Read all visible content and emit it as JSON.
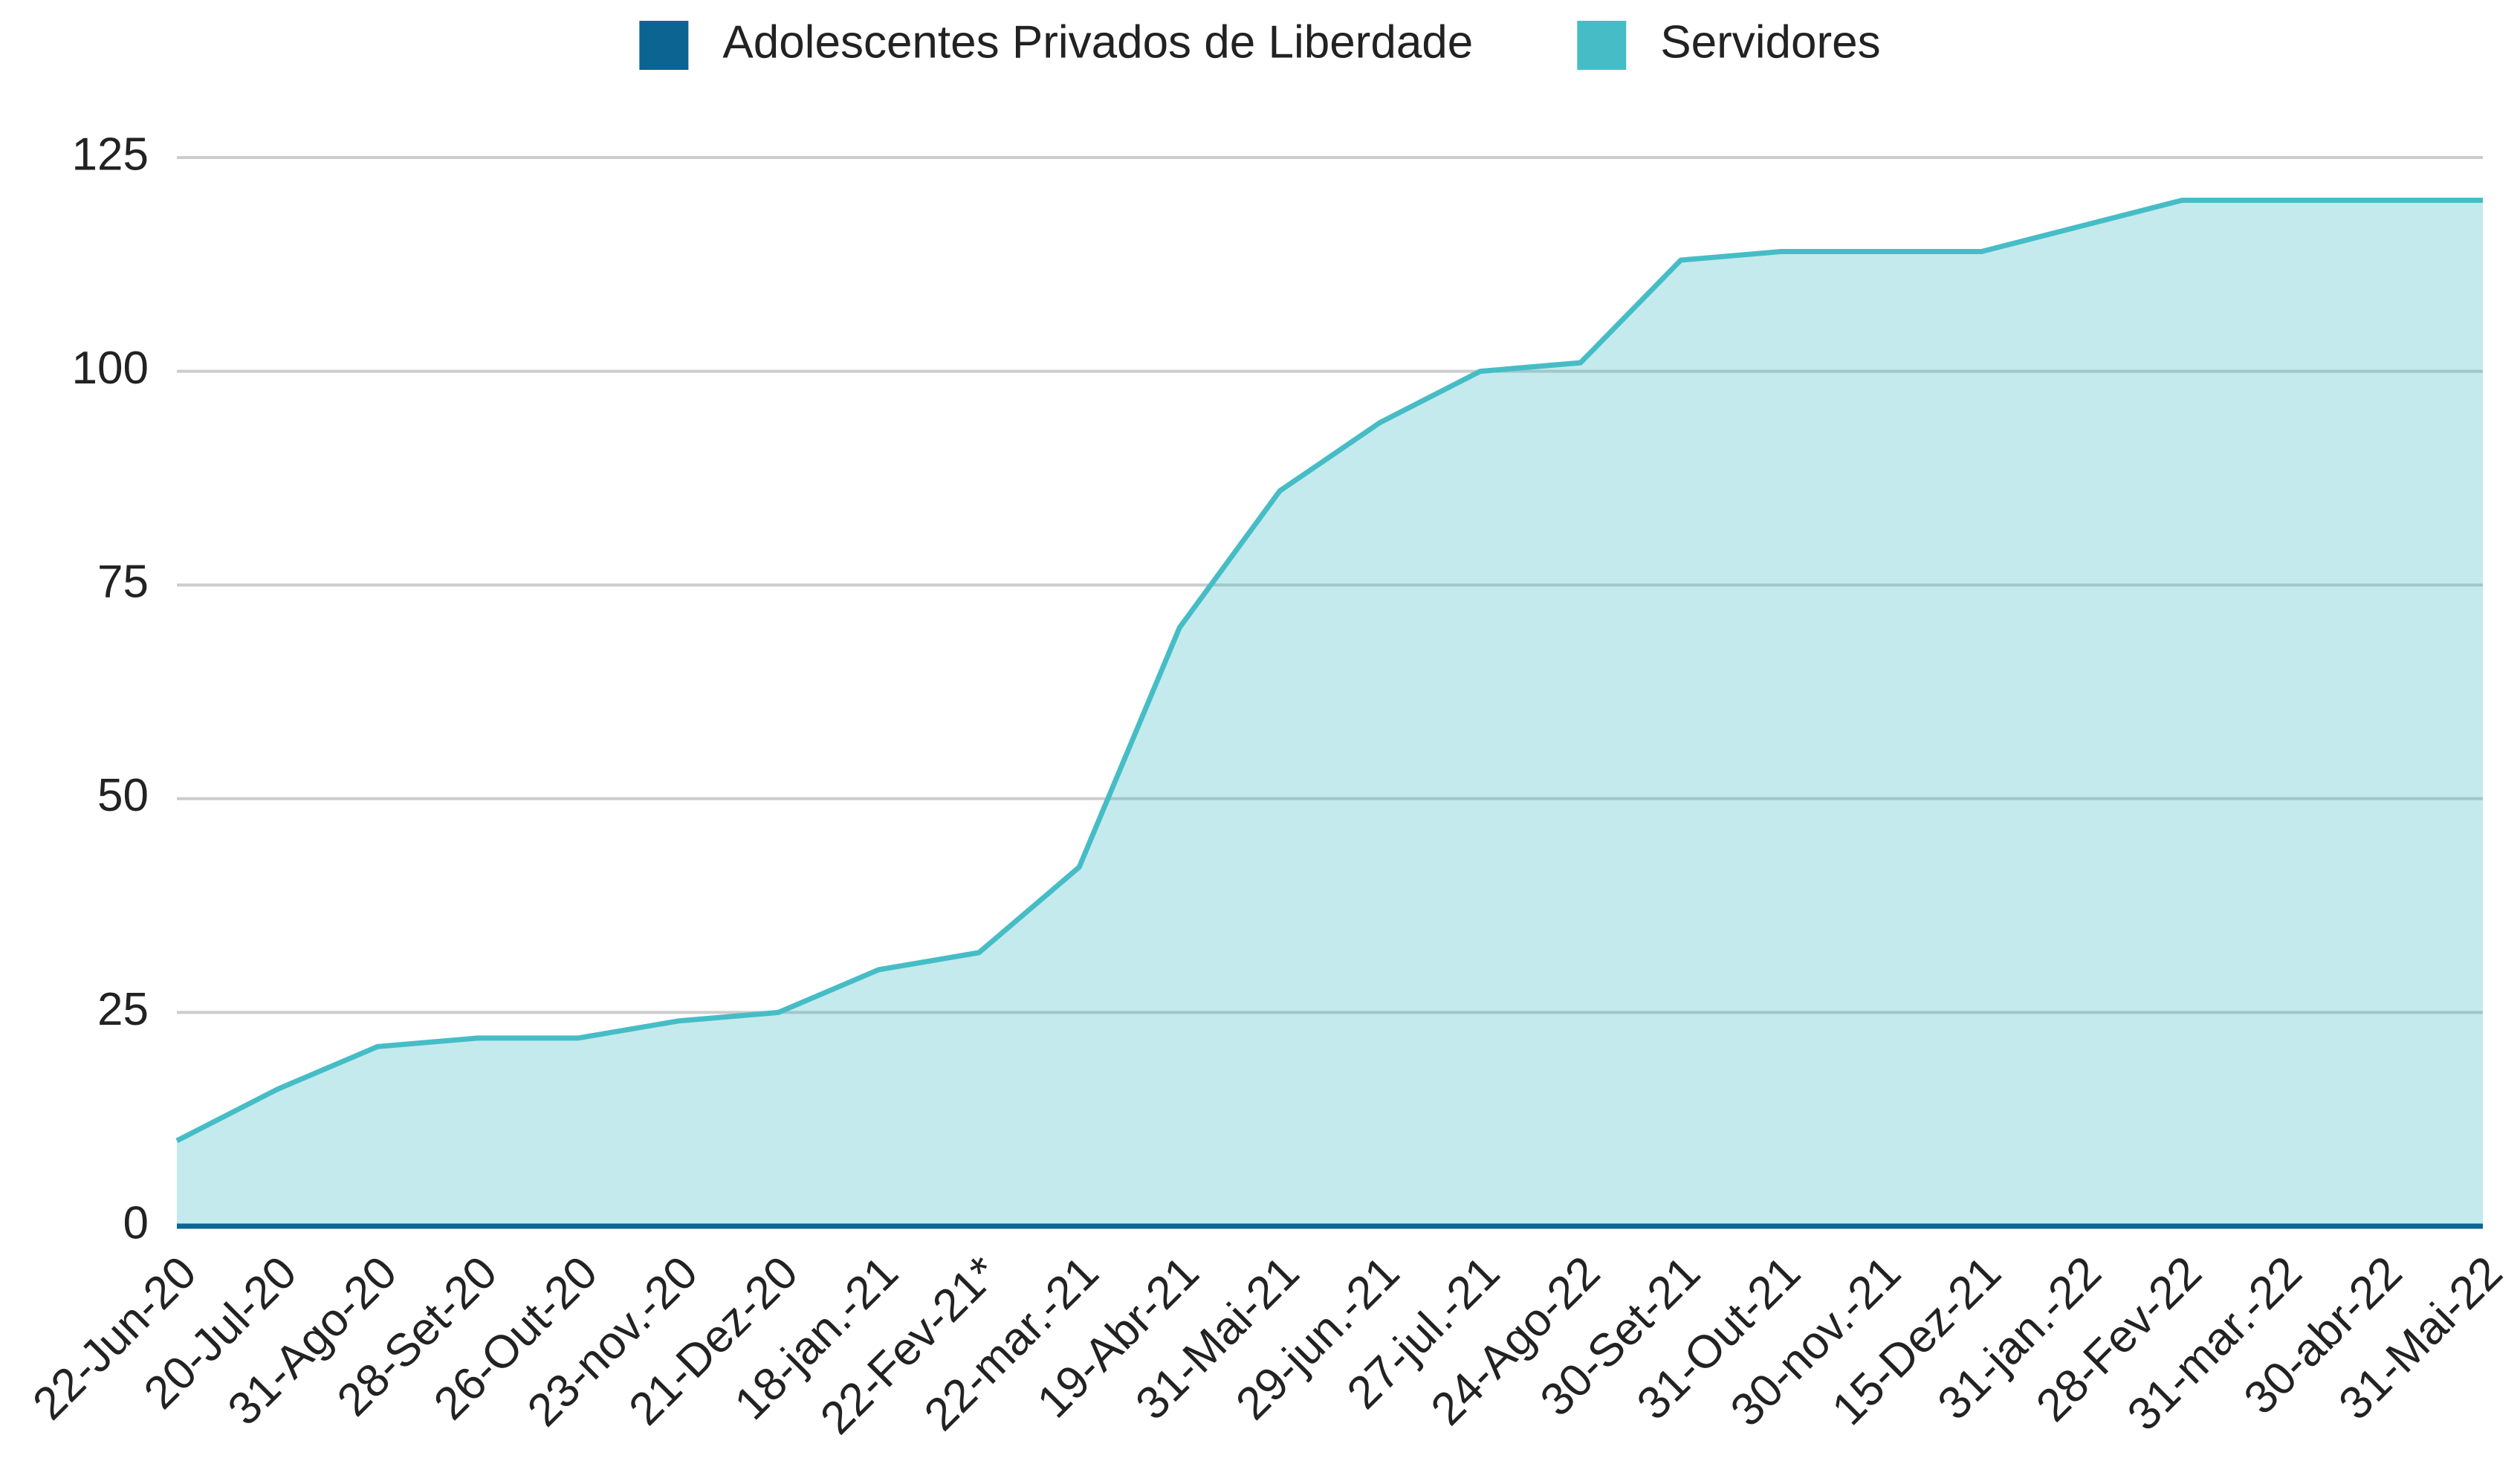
{
  "chart_data": {
    "type": "area",
    "categories": [
      "22-Jun-20",
      "20-Jul-20",
      "31-Ago-20",
      "28-Set-20",
      "26-Out-20",
      "23-nov.-20",
      "21-Dez-20",
      "18-jan.-21",
      "22-Fev-21*",
      "22-mar.-21",
      "19-Abr-21",
      "31-Mai-21",
      "29-jun.-21",
      "27-jul.-21",
      "24-Ago-22",
      "30-Set-21",
      "31-Out-21",
      "30-nov.-21",
      "15-Dez-21",
      "31-jan.-22",
      "28-Fev-22",
      "31-mar.-22",
      "30-abr-22",
      "31-Mai-22"
    ],
    "series": [
      {
        "name": "Adolescentes Privados de Liberdade",
        "color": "#0b6491",
        "values": [
          0,
          0,
          0,
          0,
          0,
          0,
          0,
          0,
          0,
          0,
          0,
          0,
          0,
          0,
          0,
          0,
          0,
          0,
          0,
          0,
          0,
          0,
          0,
          0
        ]
      },
      {
        "name": "Servidores",
        "color": "#46bdc6",
        "values": [
          10,
          16,
          21,
          22,
          22,
          24,
          25,
          30,
          32,
          42,
          70,
          86,
          94,
          100,
          101,
          113,
          114,
          114,
          114,
          117,
          120,
          120,
          120,
          120
        ]
      }
    ],
    "ylim": [
      0,
      125
    ],
    "yticks": [
      0,
      25,
      50,
      75,
      100,
      125
    ],
    "grid": true,
    "legend": "top"
  }
}
